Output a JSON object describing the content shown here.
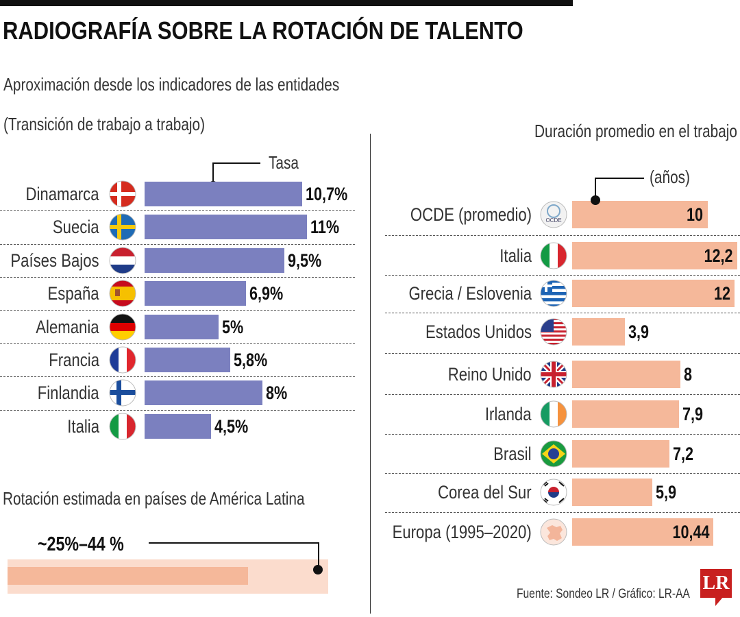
{
  "title": "RADIOGRAFÍA SOBRE LA ROTACIÓN DE TALENTO",
  "subtitle1": "Aproximación desde los indicadores de las entidades",
  "subtitle2": "(Transición de trabajo a trabajo)",
  "latam": {
    "title": "Rotación estimada en países de América Latina",
    "label": "~25%–44 %",
    "range": [
      25,
      44
    ]
  },
  "footer": {
    "source": "Fuente: Sondeo LR / Gráfico: LR-AA",
    "logo": "LR"
  },
  "colors": {
    "left_bar": "#7b80bf",
    "right_bar": "#f5b89a",
    "latam_bg": "#fbdccd"
  },
  "chart_data": [
    {
      "type": "bar",
      "orientation": "horizontal",
      "title": "Tasa",
      "unit": "%",
      "categories": [
        "Dinamarca",
        "Suecia",
        "Países Bajos",
        "España",
        "Alemania",
        "Francia",
        "Finlandia",
        "Italia"
      ],
      "values": [
        10.7,
        11,
        9.5,
        6.9,
        5,
        5.8,
        8,
        4.5
      ],
      "labels": [
        "10,7%",
        "11%",
        "9,5%",
        "6,9%",
        "5%",
        "5,8%",
        "8%",
        "4,5%"
      ],
      "flags": [
        "dk",
        "se",
        "nl",
        "es",
        "de",
        "fr",
        "fi",
        "it"
      ]
    },
    {
      "type": "bar",
      "orientation": "horizontal",
      "title": "Duración promedio en el trabajo",
      "unit_label": "(años)",
      "categories": [
        "OCDE (promedio)",
        "Italia",
        "Grecia / Eslovenia",
        "Estados Unidos",
        "Reino Unido",
        "Irlanda",
        "Brasil",
        "Corea del Sur",
        "Europa (1995–2020)"
      ],
      "values": [
        10,
        12.2,
        12,
        3.9,
        8,
        7.9,
        7.2,
        5.9,
        10.44
      ],
      "labels": [
        "10",
        "12,2",
        "12",
        "3,9",
        "8",
        "7,9",
        "7,2",
        "5,9",
        "10,44"
      ],
      "flags": [
        "ocde",
        "it",
        "gr",
        "us",
        "gb",
        "ie",
        "br",
        "kr",
        "eu"
      ],
      "ocde_icon_text": "OCDE"
    }
  ]
}
